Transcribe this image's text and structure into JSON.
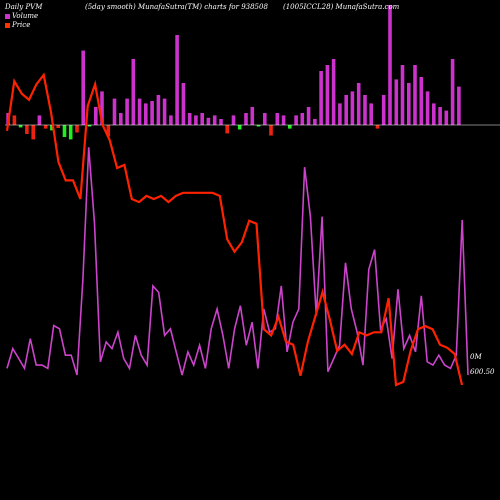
{
  "header": {
    "left": "Daily PVM",
    "mid1": "(5day smooth) MunafaSutra(TM) charts for 938508",
    "mid2": "(1005ICCL28) MunafaSutra.com"
  },
  "legend": {
    "volume_label": "Volume",
    "price_label": "Price",
    "volume_color": "#cc33cc",
    "price_color": "#ff3300"
  },
  "right_labels": {
    "volume_zero": "0M",
    "price_label": "600.50"
  },
  "colors": {
    "background": "#000000",
    "volume_positive": "#cc33cc",
    "volume_negative_green": "#22ee22",
    "volume_negative_red": "#ee2211",
    "price_line": "#ff2200",
    "pvm_line": "#cc44cc",
    "baseline": "#ffffff"
  },
  "chart_data": {
    "type": "bar",
    "bars": [
      {
        "v": 0.1,
        "c": "pos"
      },
      {
        "v": 0.08,
        "c": "red"
      },
      {
        "v": -0.08,
        "c": "green"
      },
      {
        "v": -0.3,
        "c": "red"
      },
      {
        "v": -0.48,
        "c": "red"
      },
      {
        "v": 0.08,
        "c": "pos"
      },
      {
        "v": -0.12,
        "c": "red"
      },
      {
        "v": -0.18,
        "c": "green"
      },
      {
        "v": -0.1,
        "c": "red"
      },
      {
        "v": -0.4,
        "c": "green"
      },
      {
        "v": -0.48,
        "c": "green"
      },
      {
        "v": -0.25,
        "c": "red"
      },
      {
        "v": 0.62,
        "c": "pos"
      },
      {
        "v": -0.05,
        "c": "green"
      },
      {
        "v": 0.15,
        "c": "pos"
      },
      {
        "v": 0.28,
        "c": "pos"
      },
      {
        "v": -0.38,
        "c": "red"
      },
      {
        "v": 0.22,
        "c": "pos"
      },
      {
        "v": 0.1,
        "c": "pos"
      },
      {
        "v": 0.22,
        "c": "pos"
      },
      {
        "v": 0.55,
        "c": "pos"
      },
      {
        "v": 0.22,
        "c": "pos"
      },
      {
        "v": 0.18,
        "c": "pos"
      },
      {
        "v": 0.2,
        "c": "pos"
      },
      {
        "v": 0.25,
        "c": "pos"
      },
      {
        "v": 0.22,
        "c": "pos"
      },
      {
        "v": 0.08,
        "c": "pos"
      },
      {
        "v": 0.75,
        "c": "pos"
      },
      {
        "v": 0.35,
        "c": "pos"
      },
      {
        "v": 0.1,
        "c": "pos"
      },
      {
        "v": 0.08,
        "c": "pos"
      },
      {
        "v": 0.1,
        "c": "pos"
      },
      {
        "v": 0.06,
        "c": "pos"
      },
      {
        "v": 0.08,
        "c": "pos"
      },
      {
        "v": 0.05,
        "c": "pos"
      },
      {
        "v": -0.28,
        "c": "red"
      },
      {
        "v": 0.08,
        "c": "pos"
      },
      {
        "v": -0.15,
        "c": "green"
      },
      {
        "v": 0.1,
        "c": "pos"
      },
      {
        "v": 0.15,
        "c": "pos"
      },
      {
        "v": -0.05,
        "c": "green"
      },
      {
        "v": 0.1,
        "c": "pos"
      },
      {
        "v": -0.35,
        "c": "red"
      },
      {
        "v": 0.1,
        "c": "pos"
      },
      {
        "v": 0.08,
        "c": "pos"
      },
      {
        "v": -0.12,
        "c": "green"
      },
      {
        "v": 0.08,
        "c": "pos"
      },
      {
        "v": 0.1,
        "c": "pos"
      },
      {
        "v": 0.15,
        "c": "pos"
      },
      {
        "v": 0.05,
        "c": "pos"
      },
      {
        "v": 0.45,
        "c": "pos"
      },
      {
        "v": 0.5,
        "c": "pos"
      },
      {
        "v": 0.55,
        "c": "pos"
      },
      {
        "v": 0.18,
        "c": "pos"
      },
      {
        "v": 0.25,
        "c": "pos"
      },
      {
        "v": 0.28,
        "c": "pos"
      },
      {
        "v": 0.35,
        "c": "pos"
      },
      {
        "v": 0.25,
        "c": "pos"
      },
      {
        "v": 0.18,
        "c": "pos"
      },
      {
        "v": -0.12,
        "c": "red"
      },
      {
        "v": 0.25,
        "c": "pos"
      },
      {
        "v": 1.0,
        "c": "pos"
      },
      {
        "v": 0.38,
        "c": "pos"
      },
      {
        "v": 0.5,
        "c": "pos"
      },
      {
        "v": 0.35,
        "c": "pos"
      },
      {
        "v": 0.5,
        "c": "pos"
      },
      {
        "v": 0.4,
        "c": "pos"
      },
      {
        "v": 0.28,
        "c": "pos"
      },
      {
        "v": 0.18,
        "c": "pos"
      },
      {
        "v": 0.15,
        "c": "pos"
      },
      {
        "v": 0.12,
        "c": "pos"
      },
      {
        "v": 0.55,
        "c": "pos"
      },
      {
        "v": 0.32,
        "c": "pos"
      }
    ],
    "price": [
      82,
      98,
      94,
      92,
      97,
      100,
      88,
      72,
      66,
      66,
      60,
      90,
      97,
      84,
      79,
      70,
      71,
      60,
      59,
      61,
      60,
      61,
      59,
      61,
      62,
      62,
      62,
      62,
      62,
      61,
      47,
      43,
      46,
      53,
      52,
      18,
      16,
      22,
      14,
      13,
      3,
      14,
      22,
      30,
      21,
      11,
      13,
      10,
      17,
      16,
      17,
      17,
      28,
      0,
      1,
      11,
      18,
      19,
      18,
      13,
      12,
      10,
      0
    ],
    "pvm": [
      2,
      8,
      5,
      2,
      11,
      3,
      3,
      2,
      15,
      14,
      6,
      6,
      0,
      29,
      69,
      46,
      4,
      10,
      8,
      13,
      5,
      2,
      12,
      6,
      3,
      27,
      25,
      12,
      14,
      7,
      0,
      7,
      3,
      9,
      2,
      14,
      20,
      12,
      2,
      14,
      21,
      9,
      16,
      2,
      20,
      13,
      14,
      27,
      7,
      16,
      20,
      63,
      48,
      18,
      48,
      1,
      5,
      9,
      34,
      20,
      13,
      3,
      32,
      38,
      14,
      17,
      5,
      26,
      8,
      12,
      7,
      24,
      4,
      3,
      6,
      3,
      2,
      6,
      47,
      0
    ],
    "ylim_volume": [
      -1,
      1
    ],
    "ylim_price": [
      0,
      100
    ],
    "ylim_pvm": [
      0,
      100
    ]
  }
}
